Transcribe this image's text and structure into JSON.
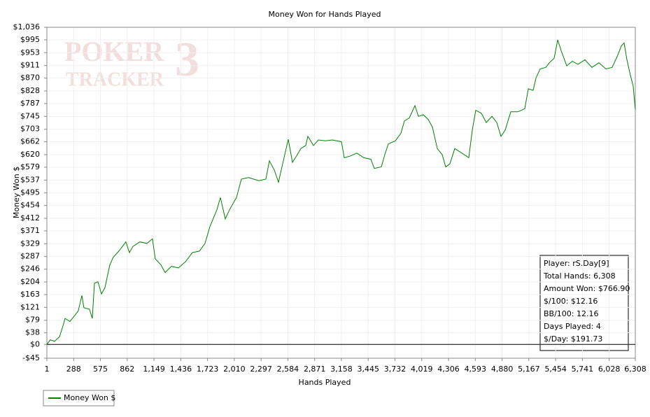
{
  "chart_data": {
    "type": "line",
    "title": "Money Won for Hands Played",
    "xlabel": "Hands Played",
    "ylabel": "Money Won $",
    "watermark": [
      "POKER",
      "TRACKER",
      "3"
    ],
    "x": [
      1,
      38,
      83,
      136,
      173,
      196,
      248,
      301,
      338,
      376,
      398,
      458,
      488,
      511,
      548,
      586,
      623,
      676,
      713,
      773,
      848,
      886,
      923,
      998,
      1073,
      1133,
      1163,
      1223,
      1268,
      1336,
      1411,
      1486,
      1561,
      1636,
      1696,
      1748,
      1823,
      1861,
      1913,
      1958,
      2033,
      2086,
      2161,
      2273,
      2348,
      2386,
      2438,
      2483,
      2536,
      2588,
      2633,
      2686,
      2723,
      2776,
      2798,
      2858,
      2911,
      2986,
      3061,
      3158,
      3188,
      3248,
      3323,
      3398,
      3473,
      3511,
      3586,
      3623,
      3661,
      3736,
      3796,
      3833,
      3886,
      3946,
      3983,
      4036,
      4088,
      4133,
      4186,
      4238,
      4276,
      4321,
      4373,
      4448,
      4523,
      4561,
      4598,
      4658,
      4711,
      4771,
      4823,
      4868,
      4913,
      4973,
      5048,
      5123,
      5161,
      5213,
      5243,
      5288,
      5348,
      5386,
      5438,
      5476,
      5513,
      5573,
      5633,
      5693,
      5768,
      5843,
      5918,
      5993,
      6060,
      6113,
      6158,
      6188,
      6218,
      6255,
      6285,
      6308
    ],
    "series": [
      {
        "name": "Money Won $",
        "color": "#008000",
        "values": [
          0,
          15,
          10,
          25,
          60,
          85,
          75,
          95,
          110,
          160,
          120,
          115,
          85,
          200,
          205,
          165,
          185,
          260,
          285,
          305,
          335,
          300,
          320,
          335,
          330,
          345,
          280,
          260,
          235,
          255,
          250,
          270,
          300,
          305,
          330,
          385,
          440,
          480,
          410,
          440,
          480,
          540,
          545,
          535,
          540,
          600,
          570,
          530,
          600,
          670,
          595,
          620,
          640,
          650,
          680,
          650,
          668,
          665,
          668,
          662,
          610,
          615,
          625,
          610,
          605,
          575,
          580,
          620,
          655,
          665,
          690,
          730,
          740,
          780,
          745,
          750,
          735,
          710,
          640,
          620,
          580,
          590,
          640,
          625,
          610,
          700,
          765,
          755,
          725,
          745,
          725,
          680,
          700,
          760,
          760,
          770,
          835,
          830,
          870,
          900,
          905,
          920,
          935,
          995,
          960,
          910,
          925,
          915,
          930,
          905,
          920,
          900,
          905,
          940,
          975,
          985,
          930,
          880,
          845,
          767
        ]
      }
    ],
    "xlim": [
      1,
      6308
    ],
    "xticks": [
      1,
      288,
      575,
      862,
      {
        "value": 1149,
        "label": "1,149"
      },
      {
        "value": 1436,
        "label": "1,436"
      },
      {
        "value": 1723,
        "label": "1,723"
      },
      {
        "value": 2010,
        "label": "2,010"
      },
      {
        "value": 2297,
        "label": "2,297"
      },
      {
        "value": 2584,
        "label": "2,584"
      },
      {
        "value": 2871,
        "label": "2,871"
      },
      {
        "value": 3158,
        "label": "3,158"
      },
      {
        "value": 3445,
        "label": "3,445"
      },
      {
        "value": 3732,
        "label": "3,732"
      },
      {
        "value": 4019,
        "label": "4,019"
      },
      {
        "value": 4306,
        "label": "4,306"
      },
      {
        "value": 4593,
        "label": "4,593"
      },
      {
        "value": 4880,
        "label": "4,880"
      },
      {
        "value": 5167,
        "label": "5,167"
      },
      {
        "value": 5454,
        "label": "5,454"
      },
      {
        "value": 5741,
        "label": "5,741"
      },
      {
        "value": 6028,
        "label": "6,028"
      },
      {
        "value": 6308,
        "label": "6,308"
      }
    ],
    "ylim": [
      -45,
      1036
    ],
    "yticks": [
      {
        "value": -45,
        "label": "-$45"
      },
      {
        "value": 0,
        "label": "$0"
      },
      {
        "value": 38,
        "label": "$38"
      },
      {
        "value": 79,
        "label": "$79"
      },
      {
        "value": 121,
        "label": "$121"
      },
      {
        "value": 163,
        "label": "$163"
      },
      {
        "value": 204,
        "label": "$204"
      },
      {
        "value": 246,
        "label": "$246"
      },
      {
        "value": 287,
        "label": "$287"
      },
      {
        "value": 329,
        "label": "$329"
      },
      {
        "value": 371,
        "label": "$371"
      },
      {
        "value": 412,
        "label": "$412"
      },
      {
        "value": 454,
        "label": "$454"
      },
      {
        "value": 495,
        "label": "$495"
      },
      {
        "value": 537,
        "label": "$537"
      },
      {
        "value": 579,
        "label": "$579"
      },
      {
        "value": 620,
        "label": "$620"
      },
      {
        "value": 662,
        "label": "$662"
      },
      {
        "value": 703,
        "label": "$703"
      },
      {
        "value": 745,
        "label": "$745"
      },
      {
        "value": 787,
        "label": "$787"
      },
      {
        "value": 828,
        "label": "$828"
      },
      {
        "value": 870,
        "label": "$870"
      },
      {
        "value": 911,
        "label": "$911"
      },
      {
        "value": 953,
        "label": "$953"
      },
      {
        "value": 995,
        "label": "$995"
      },
      {
        "value": 1036,
        "label": "$1,036"
      }
    ],
    "grid": true,
    "legend": "bottom-left",
    "stats": [
      "Player: rS.Day[9]",
      "Total Hands: 6,308",
      "Amount Won: $766.90",
      "$/100: $12.16",
      "BB/100: 12.16",
      "Days Played: 4",
      "$/Day: $191.73"
    ]
  }
}
